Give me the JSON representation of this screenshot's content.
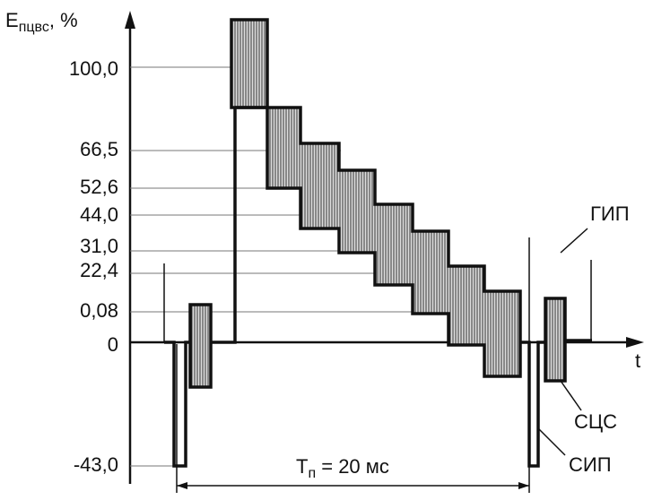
{
  "axis": {
    "y_label": "E",
    "y_label_sub": "пцвс",
    "y_unit": ", %",
    "x_label": "t",
    "ticks": [
      "100,0",
      "66,5",
      "52,6",
      "44,0",
      "31,0",
      "22,4",
      "0,08",
      "0",
      "-43,0"
    ]
  },
  "annotations": {
    "period": "T",
    "period_sub": "п",
    "period_value": " = 20 мс",
    "labels": [
      "ГИП",
      "СЦС",
      "СИП"
    ]
  }
}
